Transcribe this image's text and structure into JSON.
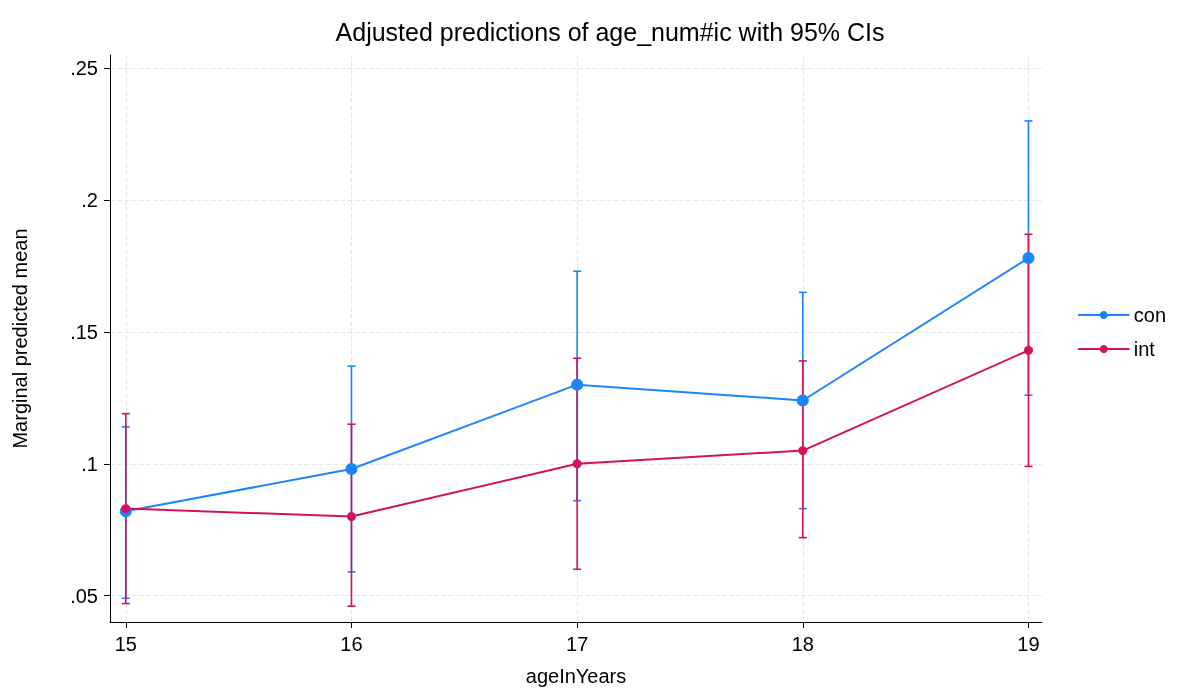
{
  "chart_data": {
    "type": "line",
    "title": "Adjusted predictions of age_num#ic with 95% CIs",
    "xlabel": "ageInYears",
    "ylabel": "Marginal predicted mean",
    "x": [
      15,
      16,
      17,
      18,
      19
    ],
    "series": [
      {
        "name": "con",
        "color": "#1a85ff",
        "values": [
          0.082,
          0.098,
          0.13,
          0.124,
          0.178
        ],
        "errors": [
          [
            0.049,
            0.114
          ],
          [
            0.059,
            0.137
          ],
          [
            0.086,
            0.173
          ],
          [
            0.083,
            0.165
          ],
          [
            0.126,
            0.23
          ]
        ]
      },
      {
        "name": "int",
        "color": "#d41159",
        "values": [
          0.083,
          0.08,
          0.1,
          0.105,
          0.143
        ],
        "errors": [
          [
            0.047,
            0.119
          ],
          [
            0.046,
            0.115
          ],
          [
            0.06,
            0.14
          ],
          [
            0.072,
            0.139
          ],
          [
            0.099,
            0.187
          ]
        ]
      }
    ],
    "xlim": [
      14.93,
      19.06
    ],
    "xticks": [
      15,
      16,
      17,
      18,
      19
    ],
    "ylim": [
      0.04,
      0.255
    ],
    "yticks": [
      {
        "value": 0.05,
        "label": ".05"
      },
      {
        "value": 0.1,
        "label": ".1"
      },
      {
        "value": 0.15,
        "label": ".15"
      },
      {
        "value": 0.2,
        "label": ".2"
      },
      {
        "value": 0.25,
        "label": ".25"
      }
    ],
    "grid": true,
    "legend": "right",
    "marker": "circle",
    "line_style": "solid"
  }
}
